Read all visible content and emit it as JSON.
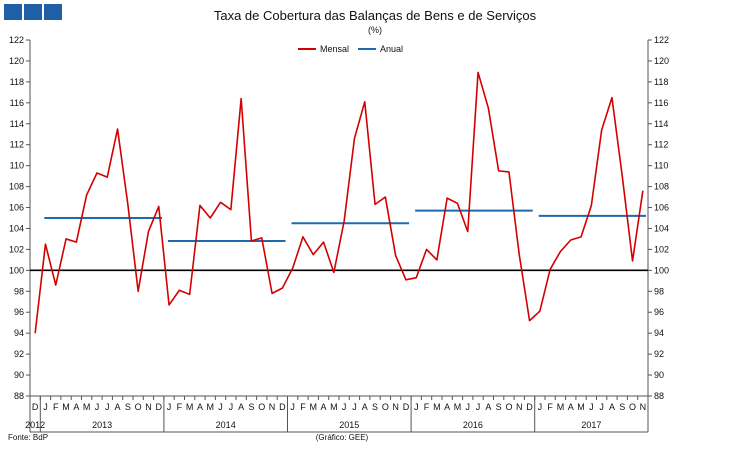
{
  "chart_data": {
    "type": "line",
    "title": "Taxa de Cobertura das Balanças de Bens e de Serviços",
    "subtitle": "(%)",
    "xlabel": "",
    "ylabel": "",
    "ylim": [
      88,
      122
    ],
    "y_ticks": [
      88,
      90,
      92,
      94,
      96,
      98,
      100,
      102,
      104,
      106,
      108,
      110,
      112,
      114,
      116,
      118,
      120,
      122
    ],
    "reference_line": 100,
    "grid": false,
    "legend_position": "top-center",
    "months": [
      "D",
      "J",
      "F",
      "M",
      "A",
      "M",
      "J",
      "J",
      "A",
      "S",
      "O",
      "N",
      "D",
      "J",
      "F",
      "M",
      "A",
      "M",
      "J",
      "J",
      "A",
      "S",
      "O",
      "N",
      "D",
      "J",
      "F",
      "M",
      "A",
      "M",
      "J",
      "J",
      "A",
      "S",
      "O",
      "N",
      "D",
      "J",
      "F",
      "M",
      "A",
      "M",
      "J",
      "J",
      "A",
      "S",
      "O",
      "N",
      "D",
      "J",
      "F",
      "M",
      "A",
      "M",
      "J",
      "J",
      "A",
      "S",
      "O",
      "N"
    ],
    "years": [
      {
        "label": "2012",
        "start": 0,
        "end": 0
      },
      {
        "label": "2013",
        "start": 1,
        "end": 12
      },
      {
        "label": "2014",
        "start": 13,
        "end": 24
      },
      {
        "label": "2015",
        "start": 25,
        "end": 36
      },
      {
        "label": "2016",
        "start": 37,
        "end": 48
      },
      {
        "label": "2017",
        "start": 49,
        "end": 59
      }
    ],
    "series": [
      {
        "name": "Mensal",
        "color": "#d40000",
        "kind": "line",
        "values": [
          94.0,
          102.5,
          98.6,
          103.0,
          102.7,
          107.2,
          109.3,
          108.9,
          113.5,
          106.3,
          98.0,
          103.7,
          106.1,
          96.7,
          98.1,
          97.7,
          106.2,
          105.0,
          106.5,
          105.8,
          116.4,
          102.8,
          103.1,
          97.8,
          98.3,
          100.2,
          103.2,
          101.5,
          102.7,
          99.8,
          104.7,
          112.6,
          116.1,
          106.3,
          107.0,
          101.4,
          99.1,
          99.3,
          102.0,
          101.0,
          106.9,
          106.4,
          103.7,
          118.9,
          115.5,
          109.5,
          109.4,
          101.5,
          95.2,
          96.1,
          100.1,
          101.8,
          102.9,
          103.2,
          106.2,
          113.4,
          116.5,
          109.0,
          100.9,
          107.6
        ]
      },
      {
        "name": "Anual",
        "color": "#1f6aae",
        "kind": "annual",
        "segments": [
          {
            "start": 1,
            "end": 12,
            "value": 105.0
          },
          {
            "start": 13,
            "end": 24,
            "value": 102.8
          },
          {
            "start": 25,
            "end": 36,
            "value": 104.5
          },
          {
            "start": 37,
            "end": 48,
            "value": 105.7
          },
          {
            "start": 49,
            "end": 59,
            "value": 105.2
          }
        ]
      }
    ],
    "reference_color": "#000000"
  },
  "footer": {
    "source": "Fonte: BdP",
    "credit": "(Gráfico: GEE)"
  },
  "header": {
    "logo_color": "#1f5fa8"
  }
}
